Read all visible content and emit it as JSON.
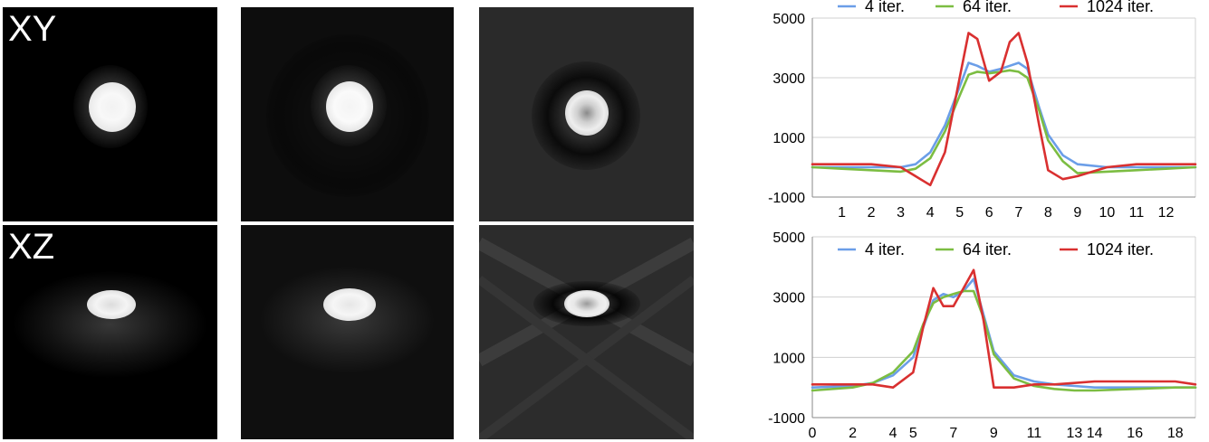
{
  "panels": {
    "xy_label": "XY",
    "xz_label": "XZ"
  },
  "colors": {
    "series_4": "#6b9ee8",
    "series_64": "#7cbd42",
    "series_1024": "#d93030"
  },
  "chart_data": [
    {
      "type": "line",
      "title": "",
      "xlabel": "",
      "ylabel": "",
      "ylim": [
        -1000,
        5000
      ],
      "y_ticks": [
        -1000,
        1000,
        3000,
        5000
      ],
      "xlim": [
        0,
        13
      ],
      "x_ticks": [
        1,
        2,
        3,
        4,
        5,
        6,
        7,
        8,
        9,
        10,
        11,
        12
      ],
      "grid": "horizontal",
      "legend": "top",
      "series": [
        {
          "name": "4 iter.",
          "x": [
            0,
            1,
            2,
            3,
            3.5,
            4,
            4.5,
            5,
            5.3,
            5.6,
            6,
            6.4,
            6.7,
            7,
            7.3,
            7.7,
            8,
            8.5,
            9,
            10,
            11,
            12,
            13
          ],
          "values": [
            0,
            0,
            0,
            0,
            100,
            500,
            1400,
            2700,
            3500,
            3400,
            3200,
            3300,
            3400,
            3500,
            3300,
            2000,
            1100,
            400,
            100,
            0,
            0,
            0,
            0
          ]
        },
        {
          "name": "64 iter.",
          "x": [
            0,
            1,
            2,
            3,
            3.5,
            4,
            4.5,
            5,
            5.3,
            5.6,
            6,
            6.4,
            6.7,
            7,
            7.3,
            7.7,
            8,
            8.5,
            9,
            10,
            11,
            12,
            13
          ],
          "values": [
            0,
            -50,
            -100,
            -150,
            -50,
            300,
            1200,
            2400,
            3100,
            3200,
            3150,
            3200,
            3250,
            3200,
            3000,
            1900,
            900,
            200,
            -200,
            -150,
            -100,
            -50,
            0
          ]
        },
        {
          "name": "1024 iter.",
          "x": [
            0,
            1,
            2,
            3,
            3.5,
            4,
            4.5,
            5,
            5.3,
            5.6,
            6,
            6.4,
            6.7,
            7,
            7.3,
            7.7,
            8,
            8.5,
            9,
            10,
            11,
            12,
            13
          ],
          "values": [
            100,
            100,
            100,
            0,
            -300,
            -600,
            500,
            3000,
            4500,
            4300,
            2900,
            3200,
            4200,
            4500,
            3500,
            1400,
            -100,
            -400,
            -300,
            0,
            100,
            100,
            100
          ]
        }
      ]
    },
    {
      "type": "line",
      "title": "",
      "xlabel": "",
      "ylabel": "",
      "ylim": [
        -1000,
        5000
      ],
      "y_ticks": [
        -1000,
        1000,
        3000,
        5000
      ],
      "xlim": [
        0,
        19
      ],
      "x_ticks": [
        0,
        2,
        4,
        5,
        7,
        9,
        11,
        13,
        14,
        16,
        18
      ],
      "grid": "horizontal",
      "legend": "top",
      "series": [
        {
          "name": "4 iter.",
          "x": [
            0,
            2,
            3,
            4,
            5,
            5.5,
            6,
            6.5,
            7,
            7.5,
            8,
            8.5,
            9,
            10,
            11,
            12,
            13,
            14,
            16,
            18,
            19
          ],
          "values": [
            0,
            50,
            150,
            400,
            1000,
            2000,
            2900,
            3100,
            3000,
            3200,
            3600,
            2400,
            1200,
            400,
            200,
            100,
            50,
            0,
            0,
            0,
            0
          ]
        },
        {
          "name": "64 iter.",
          "x": [
            0,
            2,
            3,
            4,
            5,
            5.5,
            6,
            6.5,
            7,
            7.5,
            8,
            8.5,
            9,
            10,
            11,
            12,
            13,
            14,
            16,
            18,
            19
          ],
          "values": [
            -100,
            0,
            150,
            500,
            1200,
            2100,
            2800,
            3000,
            3100,
            3200,
            3200,
            2300,
            1100,
            300,
            50,
            -50,
            -100,
            -100,
            -50,
            0,
            0
          ]
        },
        {
          "name": "1024 iter.",
          "x": [
            0,
            2,
            3,
            4,
            5,
            5.5,
            6,
            6.5,
            7,
            7.5,
            8,
            8.5,
            9,
            10,
            11,
            12,
            13,
            14,
            16,
            18,
            19
          ],
          "values": [
            100,
            100,
            100,
            0,
            500,
            2000,
            3300,
            2700,
            2700,
            3300,
            3900,
            2200,
            0,
            0,
            100,
            100,
            150,
            200,
            200,
            200,
            100
          ]
        }
      ]
    }
  ]
}
